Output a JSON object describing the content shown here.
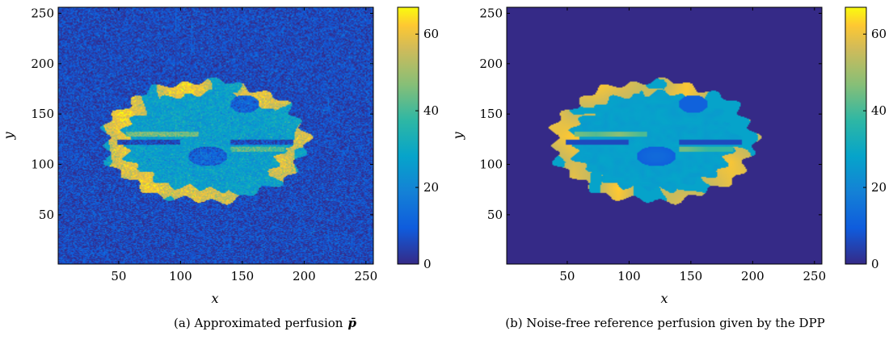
{
  "chart_data": [
    {
      "type": "heatmap",
      "panel_id": "a",
      "caption": "(a)  Approximated perfusion",
      "caption_symbol": "p̄",
      "xlabel": "x",
      "ylabel": "y",
      "xlim": [
        1,
        256
      ],
      "ylim": [
        1,
        256
      ],
      "xticks": [
        50,
        100,
        150,
        200,
        250
      ],
      "yticks": [
        50,
        100,
        150,
        200,
        250
      ],
      "colorbar": {
        "min": 0,
        "max": 67,
        "ticks": [
          0,
          20,
          40,
          60
        ],
        "colormap": "parula"
      },
      "background_noise": true,
      "content": "brain perfusion map: cortex rim ~45-60, inner tissue ~25-30, two lesions ~8-12, background noise ~0-15"
    },
    {
      "type": "heatmap",
      "panel_id": "b",
      "caption": "(b)  Noise-free reference perfusion given by the DPP",
      "caption_symbol": "",
      "xlabel": "x",
      "ylabel": "y",
      "xlim": [
        1,
        256
      ],
      "ylim": [
        1,
        256
      ],
      "xticks": [
        50,
        100,
        150,
        200,
        250
      ],
      "yticks": [
        50,
        100,
        150,
        200,
        250
      ],
      "colorbar": {
        "min": 0,
        "max": 67,
        "ticks": [
          0,
          20,
          40,
          60
        ],
        "colormap": "parula"
      },
      "background_noise": false,
      "content": "brain perfusion map: cortex rim ~50-65, inner tissue ~25-30, two lesions ~10, background 0"
    }
  ],
  "colors": {
    "parula_low": "#352a87",
    "parula_mid": "#1aa8c8",
    "parula_high": "#f9fb0e"
  }
}
